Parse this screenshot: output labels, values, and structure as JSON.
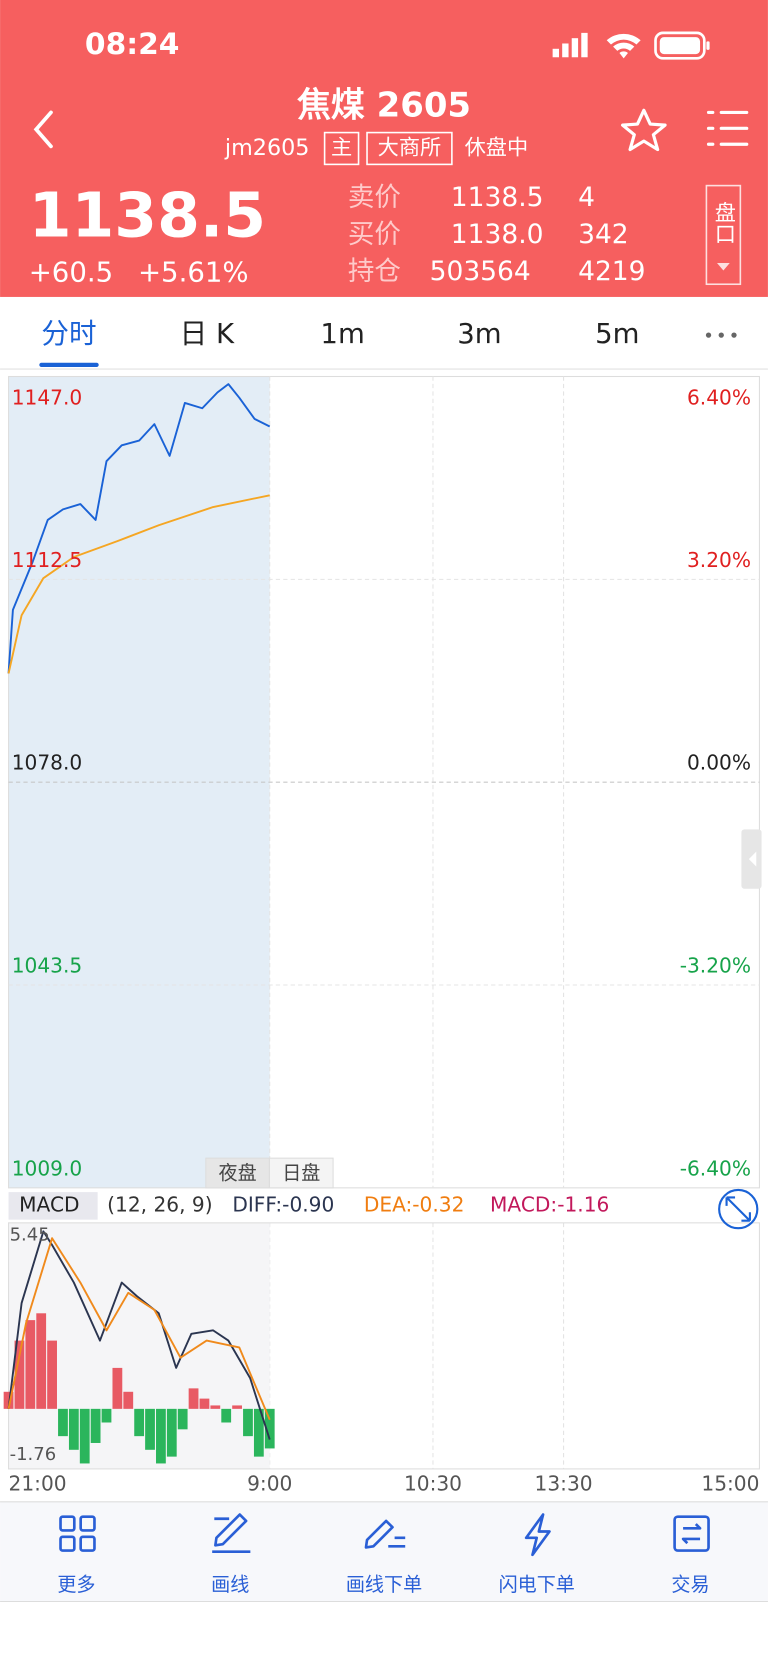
{
  "status_bar": {
    "time": "08:24"
  },
  "header": {
    "title": "焦煤 2605",
    "code": "jm2605",
    "tags": [
      "主",
      "大商所"
    ],
    "status": "休盘中"
  },
  "quote": {
    "price": "1138.5",
    "change": "+60.5",
    "change_pct": "+5.61%",
    "rows": [
      {
        "label": "卖价",
        "price": "1138.5",
        "volume": "4"
      },
      {
        "label": "买价",
        "price": "1138.0",
        "volume": "342"
      },
      {
        "label": "持仓",
        "price": "503564",
        "volume": "4219"
      }
    ],
    "side_button": "盘口"
  },
  "tabs": [
    "分时",
    "日 K",
    "1m",
    "3m",
    "5m"
  ],
  "active_tab": 0,
  "sessions": [
    "夜盘",
    "日盘"
  ],
  "chart_data": [
    {
      "type": "line",
      "xlim": [
        0,
        345
      ],
      "xticks": [
        {
          "value": 0,
          "label": "21:00"
        },
        {
          "value": 120,
          "label": "9:00"
        },
        {
          "value": 195,
          "label": "10:30"
        },
        {
          "value": 255,
          "label": "13:30"
        },
        {
          "value": 345,
          "label": "15:00"
        }
      ],
      "ylim": [
        1009,
        1147
      ],
      "yticks": [
        {
          "value": 1147,
          "label": "1147.0"
        },
        1112.5,
        {
          "value": 1078,
          "label": "1078.0"
        },
        1043.5,
        {
          "value": 1009,
          "label": "1009.0"
        }
      ],
      "y2lim": [
        -6.4,
        6.4
      ],
      "y2ticks": [
        {
          "value": 6.4,
          "label": "6.40%"
        },
        {
          "value": 3.2,
          "label": "3.20%"
        },
        {
          "value": 0,
          "label": "0.00%"
        },
        {
          "value": -3.2,
          "label": "-3.20%"
        },
        {
          "value": -6.4,
          "label": "-6.40%"
        }
      ],
      "grid": true,
      "series": [
        {
          "color": "#1a62d6",
          "x": [
            0,
            2,
            11,
            18,
            25,
            33,
            40,
            45,
            52,
            60,
            67,
            74,
            81,
            89,
            96,
            101,
            106,
            113,
            120
          ],
          "values": [
            1096.5,
            1107.3,
            1115.4,
            1122.6,
            1124.4,
            1125.3,
            1122.6,
            1132.6,
            1135.3,
            1136.1,
            1138.9,
            1133.5,
            1142.5,
            1141.6,
            1144.3,
            1145.7,
            1143.4,
            1139.8,
            1138.5
          ]
        },
        {
          "color": "#f5a623",
          "x": [
            0,
            6,
            16,
            30,
            50,
            69,
            94,
            120
          ],
          "values": [
            1096.5,
            1106.4,
            1112.7,
            1116.3,
            1119.0,
            1121.7,
            1124.8,
            1126.8
          ]
        }
      ]
    },
    {
      "type": "macd",
      "title": "MACD",
      "params": "(12, 26, 9)",
      "readouts": [
        {
          "text": "DIFF:-0.90",
          "color": "#2b3550"
        },
        {
          "text": "DEA:-0.32",
          "color": "#f07d10"
        },
        {
          "text": "MACD:-1.16",
          "color": "#c2185b"
        }
      ],
      "ylim": [
        -1.76,
        5.45
      ],
      "yticks": [
        5.45,
        -1.76
      ],
      "lines": [
        {
          "color": "#2b3550",
          "x": [
            0,
            6,
            16,
            20,
            30,
            42,
            52,
            59,
            69,
            77,
            84,
            94,
            101,
            111,
            120
          ],
          "values": [
            0,
            3.1,
            5.2,
            4.8,
            3.7,
            2.0,
            3.7,
            3.3,
            2.8,
            1.2,
            2.2,
            2.3,
            2.0,
            0.9,
            -0.9
          ]
        },
        {
          "color": "#f08a1c",
          "x": [
            0,
            8,
            20,
            33,
            45,
            55,
            67,
            79,
            91,
            106,
            120
          ],
          "values": [
            0,
            2.5,
            5.0,
            3.7,
            2.3,
            3.4,
            2.9,
            1.5,
            2.0,
            1.8,
            -0.32
          ]
        }
      ],
      "histogram": {
        "up_color": "#e85a64",
        "down_color": "#2bb55c",
        "x": [
          0,
          5,
          10,
          15,
          20,
          25,
          30,
          35,
          40,
          45,
          50,
          55,
          60,
          65,
          70,
          75,
          80,
          85,
          90,
          95,
          100,
          105,
          110,
          115,
          120
        ],
        "values": [
          0.5,
          2.0,
          2.6,
          2.8,
          2.0,
          -0.8,
          -1.2,
          -1.6,
          -1.0,
          -0.4,
          1.2,
          0.5,
          -0.8,
          -1.2,
          -1.6,
          -1.4,
          -0.6,
          0.6,
          0.3,
          0.1,
          -0.4,
          0.1,
          -0.8,
          -1.4,
          -1.16
        ]
      }
    }
  ],
  "bottom_nav": [
    "更多",
    "画线",
    "画线下单",
    "闪电下单",
    "交易"
  ]
}
